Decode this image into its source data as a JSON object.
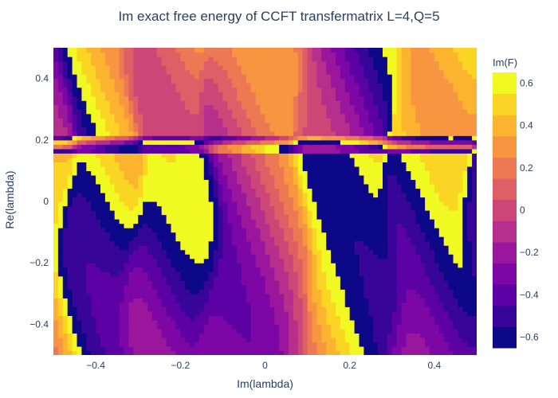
{
  "chart_data": {
    "type": "heatmap",
    "subtype": "filled-contour",
    "title": "Im exact free energy of CCFT transfermatrix L=4,Q=5",
    "xlabel": "Im(lambda)",
    "ylabel": "Re(lambda)",
    "xlim": [
      -0.5,
      0.5
    ],
    "ylim": [
      -0.5,
      0.5
    ],
    "x_ticks": [
      -0.4,
      -0.2,
      0,
      0.2,
      0.4
    ],
    "x_tick_labels": [
      "−0.4",
      "−0.2",
      "0",
      "0.2",
      "0.4"
    ],
    "y_ticks": [
      -0.4,
      -0.2,
      0,
      0.2,
      0.4
    ],
    "y_tick_labels": [
      "−0.4",
      "−0.2",
      "0",
      "0.2",
      "0.4"
    ],
    "colorbar": {
      "title": "Im(F)",
      "range": [
        -0.65,
        0.65
      ],
      "ticks": [
        -0.6,
        -0.4,
        -0.2,
        0,
        0.2,
        0.4,
        0.6
      ],
      "tick_labels": [
        "−0.6",
        "−0.4",
        "−0.2",
        "0",
        "0.2",
        "0.4",
        "0.6"
      ],
      "colorscale": "Plasma",
      "colors": [
        "#0d0887",
        "#41049d",
        "#6a00a8",
        "#8f0da4",
        "#b12a90",
        "#cc4778",
        "#e16462",
        "#f2844b",
        "#fca636",
        "#fcce25",
        "#f0f921"
      ]
    },
    "contour_levels": 13,
    "grid": false,
    "branch_cut_x": [
      -0.47,
      -0.31,
      -0.13,
      0.09,
      0.3,
      0.49
    ],
    "cut_ends_y": [
      0.17,
      0.19,
      0.2,
      0.21,
      0.17,
      0.16
    ]
  }
}
